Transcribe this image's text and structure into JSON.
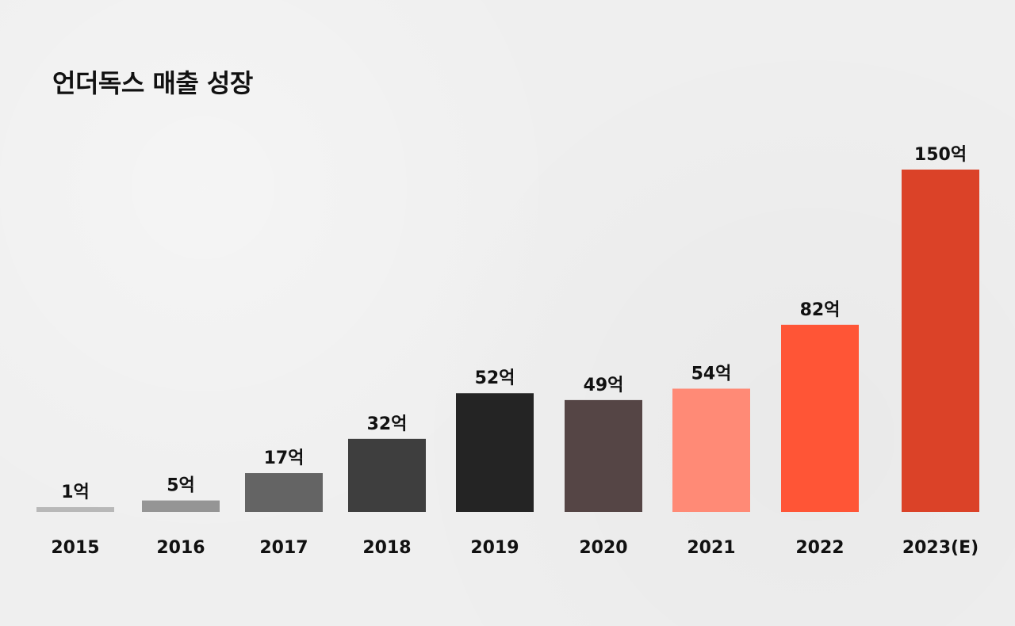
{
  "chart_data": {
    "type": "bar",
    "title": "언더독스 매출 성장",
    "xlabel": "",
    "ylabel": "",
    "ylim": [
      0,
      150
    ],
    "grid": false,
    "categories": [
      "2015",
      "2016",
      "2017",
      "2018",
      "2019",
      "2020",
      "2021",
      "2022",
      "2023(E)"
    ],
    "values": [
      1,
      5,
      17,
      32,
      52,
      49,
      54,
      82,
      150
    ],
    "data_labels": [
      "1억",
      "5억",
      "17억",
      "32억",
      "52억",
      "49억",
      "54억",
      "82억",
      "150억"
    ],
    "colors": [
      "#b8b8b8",
      "#959595",
      "#646464",
      "#3e3e3e",
      "#242424",
      "#554545",
      "#ff8a76",
      "#ff5536",
      "#db4228"
    ]
  }
}
